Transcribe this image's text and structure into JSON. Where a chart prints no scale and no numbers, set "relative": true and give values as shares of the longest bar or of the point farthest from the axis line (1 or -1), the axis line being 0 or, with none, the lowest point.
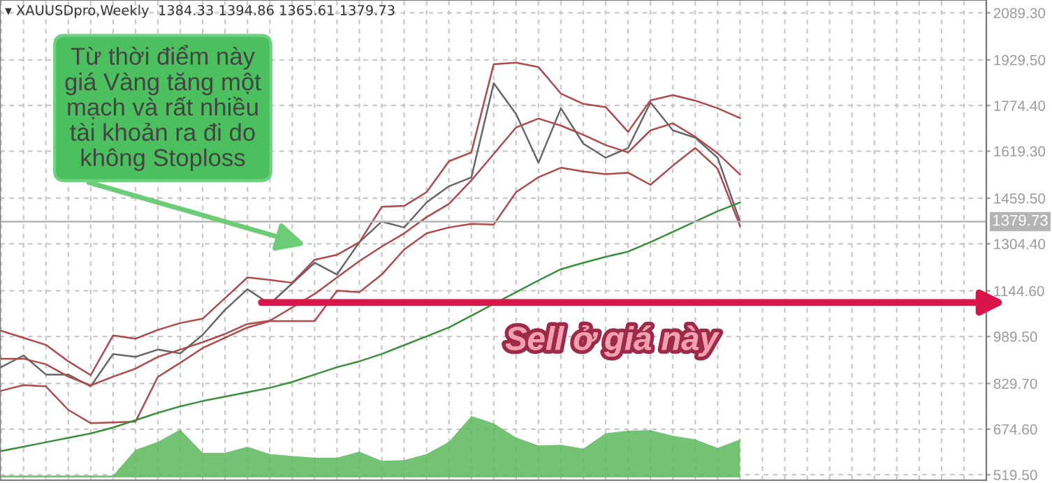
{
  "chart_data": [
    {
      "type": "line",
      "title": "▾ XAUUSDpro,Weekly  1384.33 1394.86 1365.61 1379.73",
      "categories": [
        null,
        null,
        null,
        null,
        null,
        null,
        null,
        null,
        null,
        null,
        null,
        null,
        null,
        null,
        null,
        null,
        null,
        null,
        null,
        null,
        null,
        null,
        null,
        null,
        null,
        null,
        null,
        null,
        null,
        null,
        null,
        null,
        null,
        null,
        null,
        null,
        null,
        null,
        null,
        null,
        null,
        null,
        null,
        null,
        null
      ],
      "ylim": [
        501,
        2133
      ],
      "yticks": [
        {
          "value": 2089.3,
          "label": "2089.30"
        },
        {
          "value": 1929.5,
          "label": "1929.50"
        },
        {
          "value": 1774.4,
          "label": "1774.40"
        },
        {
          "value": 1619.3,
          "label": "1619.30"
        },
        {
          "value": 1459.5,
          "label": "1459.50"
        },
        {
          "value": 1304.4,
          "label": "1304.40"
        },
        {
          "value": 1144.6,
          "label": "1144.60"
        },
        {
          "value": 989.5,
          "label": "989.50"
        },
        {
          "value": 829.7,
          "label": "829.70"
        },
        {
          "value": 674.6,
          "label": "674.60"
        },
        {
          "value": 519.5,
          "label": "519.50"
        }
      ],
      "tick_labels": "y",
      "grid": true,
      "line_style": "solid",
      "series": [
        {
          "color": "#666666",
          "values": [
            885,
            925,
            860,
            860,
            820,
            930,
            920,
            945,
            932,
            995,
            1080,
            1150,
            1100,
            1170,
            1240,
            1200,
            1310,
            1380,
            1360,
            1445,
            1500,
            1530,
            1850,
            1745,
            1580,
            1765,
            1645,
            1597,
            1630,
            1785,
            1690,
            1665,
            1597,
            1380,
            null,
            null,
            null,
            null,
            null,
            null,
            null,
            null,
            null,
            null,
            null
          ]
        },
        {
          "color": "#b04a4a",
          "values": [
            1009,
            985,
            961,
            905,
            858,
            993,
            982,
            1012,
            1035,
            1050,
            1120,
            1190,
            1182,
            1172,
            1250,
            1267,
            1310,
            1430,
            1433,
            1480,
            1585,
            1615,
            1915,
            1920,
            1905,
            1815,
            1780,
            1769,
            1685,
            1792,
            1810,
            1791,
            1765,
            1732,
            null,
            null,
            null,
            null,
            null,
            null,
            null,
            null,
            null,
            null,
            null
          ]
        },
        {
          "color": "#b04a4a",
          "values": [
            914,
            914,
            895,
            853,
            823,
            853,
            880,
            920,
            945,
            970,
            998,
            1032,
            1043,
            1088,
            1134,
            1190,
            1246,
            1295,
            1340,
            1395,
            1440,
            1520,
            1610,
            1700,
            1730,
            1706,
            1675,
            1640,
            1615,
            1690,
            1714,
            1668,
            1612,
            1540,
            null,
            null,
            null,
            null,
            null,
            null,
            null,
            null,
            null,
            null,
            null
          ]
        },
        {
          "color": "#b04a4a",
          "values": [
            805,
            824,
            820,
            740,
            695,
            697,
            700,
            852,
            900,
            950,
            985,
            1020,
            1042,
            1042,
            1042,
            1145,
            1140,
            1200,
            1285,
            1340,
            1360,
            1372,
            1370,
            1480,
            1531,
            1563,
            1550,
            1541,
            1546,
            1505,
            1570,
            1630,
            1560,
            1365,
            null,
            null,
            null,
            null,
            null,
            null,
            null,
            null,
            null,
            null,
            null
          ]
        },
        {
          "color": "#3a8f3a",
          "values": [
            600,
            615,
            630,
            645,
            660,
            680,
            705,
            730,
            752,
            770,
            785,
            800,
            815,
            835,
            860,
            885,
            905,
            930,
            960,
            990,
            1020,
            1060,
            1100,
            1140,
            1180,
            1218,
            1240,
            1260,
            1278,
            1310,
            1345,
            1380,
            1415,
            1445,
            null,
            null,
            null,
            null,
            null,
            null,
            null,
            null,
            null,
            null,
            null
          ]
        }
      ],
      "ref_lines": [
        {
          "axis": "y",
          "value": 1379.73,
          "label": "1379.73",
          "color": "#b4b4b4"
        }
      ],
      "annotations": [
        "Từ thời điểm này\ngiá Vàng tăng một\nmạch và rất nhiều\ntài khoản ra đi do\nkhông Stoploss",
        "Sell ở giá này"
      ]
    },
    {
      "type": "area",
      "relative": true,
      "tick_labels": false,
      "color": "#5cb85c",
      "categories": [
        null,
        null,
        null,
        null,
        null,
        null,
        null,
        null,
        null,
        null,
        null,
        null,
        null,
        null,
        null,
        null,
        null,
        null,
        null,
        null,
        null,
        null,
        null,
        null,
        null,
        null,
        null,
        null,
        null,
        null,
        null,
        null,
        null,
        null,
        null,
        null,
        null,
        null,
        null,
        null,
        null,
        null,
        null,
        null,
        null
      ],
      "values": [
        0.03,
        0.03,
        0.03,
        0.03,
        0.03,
        0.03,
        0.45,
        0.58,
        0.78,
        0.4,
        0.4,
        0.5,
        0.38,
        0.35,
        0.32,
        0.32,
        0.42,
        0.27,
        0.28,
        0.38,
        0.58,
        1.0,
        0.88,
        0.65,
        0.52,
        0.53,
        0.47,
        0.72,
        0.76,
        0.77,
        0.68,
        0.62,
        0.48,
        0.62,
        null,
        null,
        null,
        null,
        null,
        null,
        null,
        null,
        null,
        null,
        null
      ]
    }
  ]
}
